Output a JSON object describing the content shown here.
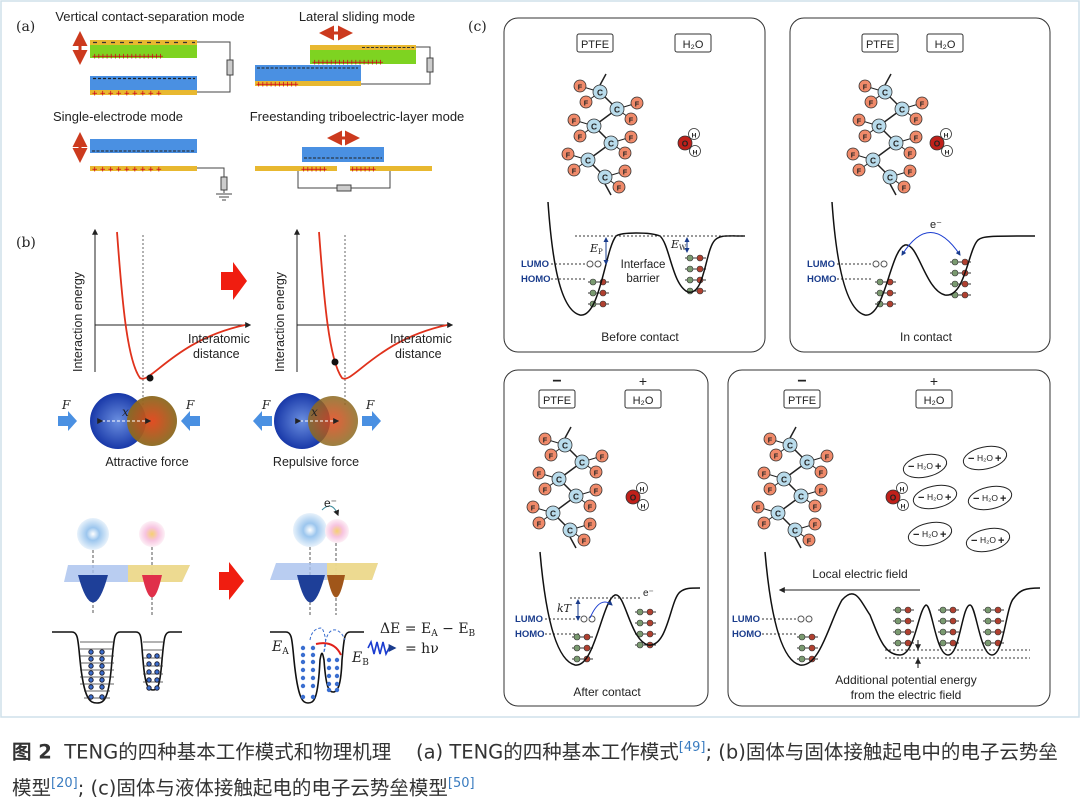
{
  "panel_a": {
    "label": "(a)",
    "modes": [
      "Vertical contact-separation mode",
      "Lateral sliding mode",
      "Single-electrode mode",
      "Freestanding triboelectric-layer mode"
    ]
  },
  "panel_b": {
    "label": "(b)",
    "ylabel": "Interaction energy",
    "xlabel_1": "Interatomic",
    "xlabel_2": "distance",
    "force_symbol": "F",
    "x_symbol": "x",
    "attractive": "Attractive force",
    "repulsive": "Repulsive force",
    "electron": "e⁻",
    "e_main": "E",
    "ea_sub": "A",
    "eb_sub": "B",
    "delta_e": "ΔE = E",
    "minus_e": " − E",
    "h_nu": "= hν"
  },
  "panel_c": {
    "label": "(c)",
    "ptfe": "PTFE",
    "h2o": "H₂O",
    "lumo": "LUMO",
    "homo": "HOMO",
    "interface_1": "Interface",
    "interface_2": "barrier",
    "ep_main": "E",
    "ep_sub": "P",
    "ew_sub": "W",
    "electron": "e⁻",
    "kt": "kT",
    "minus": "−",
    "plus": "+",
    "carbon": "C",
    "fluorine": "F",
    "oxygen": "O",
    "hydrogen": "H",
    "before_contact": "Before contact",
    "in_contact": "In contact",
    "after_contact": "After contact",
    "local_field": "Local electric field",
    "additional_1": "Additional potential energy",
    "additional_2": "from the electric field",
    "ion_label": "H₂O"
  },
  "caption": {
    "fig_no": "图 2",
    "title": "TENG的四种基本工作模式和物理机理",
    "part_a": "(a) TENG的四种基本工作模式",
    "ref_a": "[49]",
    "part_b": "; (b)固体与固体接触起电中的电子云势垒模型",
    "ref_b": "[20]",
    "part_c": "; (c)固体与液体接触起电的电子云势垒模型",
    "ref_c": "[50]"
  },
  "colors": {
    "gold": "#e8b830",
    "green": "#7ed321",
    "blue": "#4a90e2",
    "red_arrow": "#cc3a1e",
    "curve_red": "#e0321c",
    "label_blue": "#1a3c8c",
    "fluorine": "#f08a6a",
    "carbon": "#b9dcec",
    "oxygen": "#c0201a"
  }
}
